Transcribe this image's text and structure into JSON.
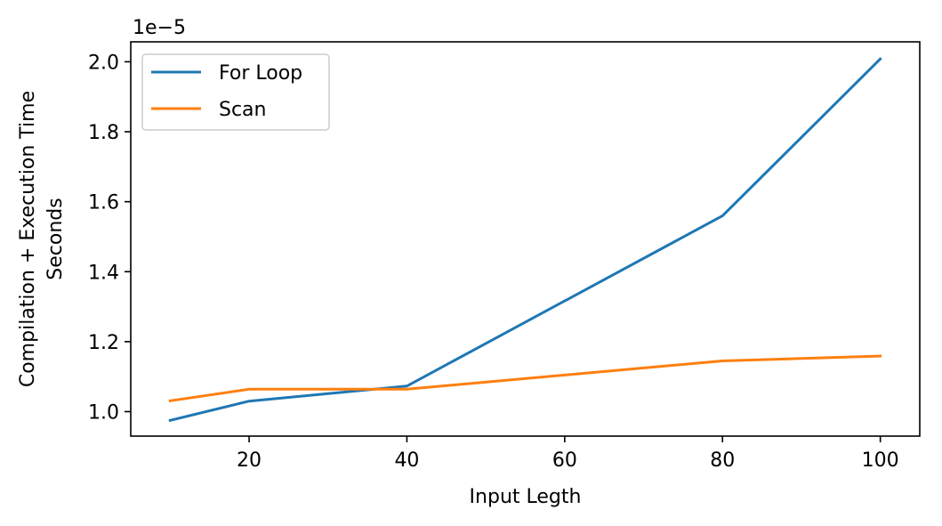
{
  "chart_data": {
    "type": "line",
    "x": [
      10,
      20,
      40,
      80,
      100
    ],
    "series": [
      {
        "name": "For Loop",
        "color": "#1f77b4",
        "values": [
          0.975,
          1.03,
          1.073,
          1.56,
          2.008
        ]
      },
      {
        "name": "Scan",
        "color": "#ff7f0e",
        "values": [
          1.031,
          1.064,
          1.064,
          1.145,
          1.159
        ]
      }
    ],
    "xlabel": "Input Legth",
    "ylabel_lines": [
      "Compilation + Execution Time",
      "Seconds"
    ],
    "y_multiplier": "1e−5",
    "xlim": [
      5,
      105
    ],
    "ylim": [
      0.93,
      2.057
    ],
    "xticks": [
      20,
      40,
      60,
      80,
      100
    ],
    "xtick_labels": [
      "20",
      "40",
      "60",
      "80",
      "100"
    ],
    "yticks": [
      1.0,
      1.2,
      1.4,
      1.6,
      1.8,
      2.0
    ],
    "ytick_labels": [
      "1.0",
      "1.2",
      "1.4",
      "1.6",
      "1.8",
      "2.0"
    ],
    "legend_placement": "top-left",
    "grid": false
  }
}
